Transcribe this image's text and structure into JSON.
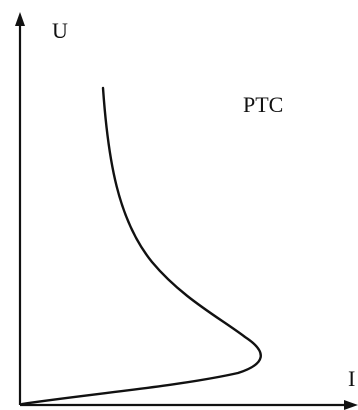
{
  "diagram": {
    "y_axis_label": "U",
    "x_axis_label": "I",
    "curve_label": "PTC"
  },
  "colors": {
    "stroke": "#111111",
    "background": "#ffffff"
  }
}
